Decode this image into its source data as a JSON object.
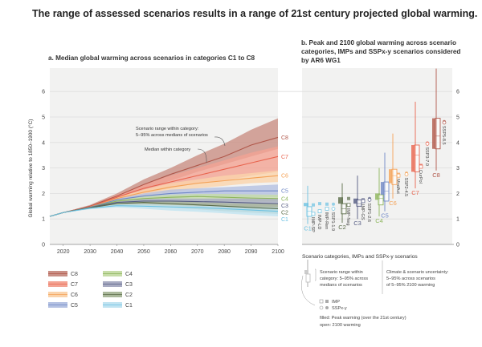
{
  "main_title": "The range of assessed scenarios results in a range of 21st century projected global warming.",
  "chart_data": [
    {
      "type": "area",
      "title": "a. Median global warming across scenarios in categories C1 to C8",
      "ylabel": "Global warming relative to 1850–1900 (°C)",
      "xlabel": "",
      "xlim": [
        2015,
        2100
      ],
      "ylim": [
        0,
        7
      ],
      "x_ticks": [
        2020,
        2030,
        2040,
        2050,
        2060,
        2070,
        2080,
        2090,
        2100
      ],
      "y_ticks": [
        0,
        1,
        2,
        3,
        4,
        5,
        6
      ],
      "grid": true,
      "years": [
        2015,
        2020,
        2030,
        2040,
        2050,
        2060,
        2070,
        2080,
        2090,
        2100
      ],
      "annotations": {
        "range": [
          "Scenario range within category:",
          "5–95% across medians of scenarios"
        ],
        "median": "Median within category"
      },
      "series": [
        {
          "name": "C8",
          "fill": "#c98f85",
          "line": "#b0574a",
          "median": [
            1.1,
            1.25,
            1.5,
            1.9,
            2.35,
            2.75,
            3.1,
            3.45,
            3.9,
            4.2
          ],
          "low": [
            1.1,
            1.25,
            1.45,
            1.8,
            2.15,
            2.5,
            2.85,
            3.15,
            3.45,
            3.75
          ],
          "high": [
            1.1,
            1.25,
            1.55,
            2.0,
            2.55,
            3.0,
            3.5,
            3.95,
            4.5,
            4.95
          ]
        },
        {
          "name": "C7",
          "fill": "#f3a393",
          "line": "#e8644e",
          "median": [
            1.1,
            1.25,
            1.48,
            1.85,
            2.2,
            2.45,
            2.7,
            2.95,
            3.2,
            3.45
          ],
          "low": [
            1.1,
            1.25,
            1.45,
            1.75,
            2.0,
            2.2,
            2.4,
            2.5,
            2.7,
            2.85
          ],
          "high": [
            1.1,
            1.25,
            1.52,
            1.95,
            2.35,
            2.7,
            3.0,
            3.3,
            3.6,
            3.85
          ]
        },
        {
          "name": "C6",
          "fill": "#fad3ab",
          "line": "#f4a257",
          "median": [
            1.1,
            1.25,
            1.47,
            1.8,
            2.05,
            2.25,
            2.4,
            2.5,
            2.6,
            2.7
          ],
          "low": [
            1.1,
            1.25,
            1.44,
            1.7,
            1.9,
            2.05,
            2.2,
            2.3,
            2.4,
            2.45
          ],
          "high": [
            1.1,
            1.25,
            1.5,
            1.85,
            2.15,
            2.4,
            2.55,
            2.7,
            2.8,
            2.9
          ]
        },
        {
          "name": "C5",
          "fill": "#b4c1e2",
          "line": "#6f87c6",
          "median": [
            1.1,
            1.25,
            1.46,
            1.75,
            1.9,
            2.0,
            2.05,
            2.1,
            2.1,
            2.1
          ],
          "low": [
            1.1,
            1.25,
            1.42,
            1.65,
            1.75,
            1.8,
            1.85,
            1.85,
            1.85,
            1.85
          ],
          "high": [
            1.1,
            1.25,
            1.5,
            1.8,
            2.0,
            2.15,
            2.2,
            2.25,
            2.3,
            2.35
          ]
        },
        {
          "name": "C4",
          "fill": "#c6dca7",
          "line": "#8db55c",
          "median": [
            1.1,
            1.25,
            1.45,
            1.7,
            1.8,
            1.85,
            1.88,
            1.85,
            1.82,
            1.8
          ],
          "low": [
            1.1,
            1.25,
            1.42,
            1.6,
            1.7,
            1.72,
            1.72,
            1.7,
            1.68,
            1.68
          ],
          "high": [
            1.1,
            1.25,
            1.48,
            1.75,
            1.88,
            1.95,
            1.98,
            1.98,
            1.96,
            1.95
          ]
        },
        {
          "name": "C3",
          "fill": "#a8abc2",
          "line": "#545b82",
          "median": [
            1.1,
            1.25,
            1.45,
            1.65,
            1.7,
            1.7,
            1.68,
            1.66,
            1.63,
            1.6
          ],
          "low": [
            1.1,
            1.25,
            1.42,
            1.58,
            1.6,
            1.57,
            1.53,
            1.5,
            1.47,
            1.45
          ],
          "high": [
            1.1,
            1.25,
            1.48,
            1.7,
            1.78,
            1.8,
            1.8,
            1.8,
            1.8,
            1.8
          ]
        },
        {
          "name": "C2",
          "fill": "#aab89b",
          "line": "#5a6b48",
          "median": [
            1.1,
            1.25,
            1.44,
            1.6,
            1.65,
            1.6,
            1.55,
            1.5,
            1.45,
            1.4
          ],
          "low": [
            1.1,
            1.25,
            1.4,
            1.52,
            1.52,
            1.45,
            1.38,
            1.3,
            1.25,
            1.2
          ],
          "high": [
            1.1,
            1.25,
            1.48,
            1.65,
            1.72,
            1.7,
            1.66,
            1.62,
            1.6,
            1.6
          ]
        },
        {
          "name": "C1",
          "fill": "#c0e3f1",
          "line": "#6cc2e2",
          "median": [
            1.1,
            1.25,
            1.42,
            1.52,
            1.5,
            1.47,
            1.45,
            1.4,
            1.35,
            1.3
          ],
          "low": [
            1.1,
            1.25,
            1.38,
            1.45,
            1.4,
            1.33,
            1.28,
            1.22,
            1.15,
            1.1
          ],
          "high": [
            1.1,
            1.25,
            1.45,
            1.58,
            1.58,
            1.55,
            1.52,
            1.5,
            1.47,
            1.45
          ]
        }
      ]
    },
    {
      "type": "box",
      "title": "b. Peak and 2100 global warming across scenario categories, IMPs and SSPx-y scenarios considered by AR6 WG1",
      "xlabel": "Scenario categories, IMPs and SSPx-y scenarios",
      "ylim": [
        0,
        7
      ],
      "y_ticks": [
        0,
        1,
        2,
        3,
        4,
        5,
        6
      ],
      "items": [
        {
          "label": "C1",
          "kind": "category",
          "color": "#6cc2e2",
          "whisker": [
            0.8,
            2.3
          ],
          "peak": [
            1.5,
            1.63
          ],
          "end": [
            1.1,
            1.3,
            1.48
          ]
        },
        {
          "label": "IMP-SP",
          "kind": "imp",
          "color": "#6cc2e2",
          "peak": 1.55,
          "end": 1.2
        },
        {
          "label": "IMP-LD",
          "kind": "imp",
          "color": "#6cc2e2",
          "peak": 1.6,
          "end": 1.3
        },
        {
          "label": "IMP-Ren",
          "kind": "imp",
          "color": "#6cc2e2",
          "peak": 1.58,
          "end": 1.4
        },
        {
          "label": "SSP1-1.9",
          "kind": "ssp",
          "color": "#6cc2e2",
          "peak": 1.58,
          "end": 1.4
        },
        {
          "label": "C2",
          "kind": "category",
          "color": "#5a6b48",
          "whisker": [
            0.85,
            2.4
          ],
          "peak": [
            1.6,
            1.85
          ],
          "end": [
            1.2,
            1.4,
            1.6
          ]
        },
        {
          "label": "IMP-Neg",
          "kind": "imp",
          "color": "#5a6b48",
          "peak": 1.8,
          "end": 1.55
        },
        {
          "label": "C3",
          "kind": "category",
          "color": "#545b82",
          "whisker": [
            1.0,
            2.7
          ],
          "peak": [
            1.6,
            1.8
          ],
          "end": [
            1.5,
            1.6,
            1.75
          ]
        },
        {
          "label": "IMP-GS",
          "kind": "imp",
          "color": "#545b82",
          "peak": 1.75,
          "end": 1.7
        },
        {
          "label": "SSP1-2.6",
          "kind": "ssp",
          "color": "#545b82",
          "peak": 1.8,
          "end": 1.75
        },
        {
          "label": "C4",
          "kind": "category",
          "color": "#8db55c",
          "whisker": [
            1.1,
            3.0
          ],
          "peak": [
            1.75,
            2.0
          ],
          "end": [
            1.55,
            1.8,
            1.95
          ]
        },
        {
          "label": "C5",
          "kind": "category",
          "color": "#6f87c6",
          "whisker": [
            1.3,
            3.6
          ],
          "peak": [
            1.95,
            2.45
          ],
          "end": [
            1.7,
            2.1,
            2.45
          ]
        },
        {
          "label": "ModAct",
          "kind": "imp",
          "color": "#f4a257",
          "peak": 2.75,
          "end": 2.7
        },
        {
          "label": "SSP2-4.5",
          "kind": "ssp",
          "color": "#f4a257",
          "peak": 2.8,
          "end": 2.75
        },
        {
          "label": "C6",
          "kind": "category",
          "color": "#f4a257",
          "whisker": [
            1.8,
            4.35
          ],
          "peak": [
            2.4,
            2.95
          ],
          "end": [
            2.35,
            2.7,
            2.95
          ]
        },
        {
          "label": "C7",
          "kind": "category",
          "color": "#e8644e",
          "whisker": [
            2.2,
            5.6
          ],
          "peak": [
            2.85,
            3.9
          ],
          "end": [
            2.85,
            3.5,
            3.9
          ]
        },
        {
          "label": "CurPol",
          "kind": "imp",
          "color": "#e8644e",
          "peak": 3.1,
          "end": 3.05
        },
        {
          "label": "SSP3-7.0",
          "kind": "ssp",
          "color": "#e8644e",
          "peak": 3.98,
          "end": 3.95
        },
        {
          "label": "C8",
          "kind": "category",
          "color": "#b0574a",
          "whisker": [
            2.9,
            6.9
          ],
          "peak": [
            3.75,
            4.95
          ],
          "end": [
            3.75,
            4.25,
            4.95
          ]
        },
        {
          "label": "SSP5-8.5",
          "kind": "ssp",
          "color": "#b0574a",
          "peak": 4.82,
          "end": 4.78
        }
      ]
    }
  ],
  "legend_b": {
    "range_text": [
      "Scenario range within",
      "category: 5–95% across",
      "medians of scenarios"
    ],
    "uncertainty_text": [
      "Climate & scenario uncertainty:",
      "5–95% across scenarios",
      "of 5–95% 2100 warming"
    ],
    "imp": "IMP",
    "ssp": "SSPx-y",
    "filled": "filled: Peak warming (over the 21st century)",
    "open": "open: 2100 warming"
  }
}
